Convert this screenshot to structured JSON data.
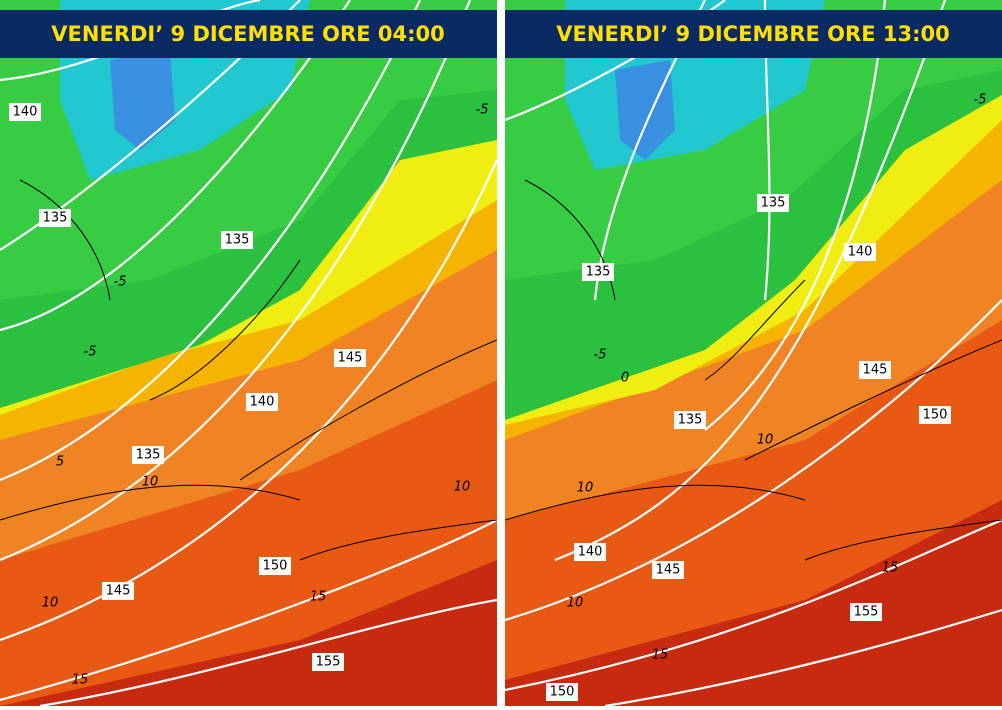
{
  "panels": [
    {
      "title": "VENERDI’ 9 DICEMBRE ORE 04:00",
      "isohypse_labels": [
        "140",
        "135",
        "135",
        "145",
        "140",
        "135",
        "150",
        "145",
        "155"
      ],
      "isotherm_labels": [
        "-5",
        "-5",
        "-5",
        "5",
        "10",
        "10",
        "10",
        "15",
        "15"
      ]
    },
    {
      "title": "VENERDI’ 9 DICEMBRE ORE 13:00",
      "isohypse_labels": [
        "135",
        "135",
        "140",
        "145",
        "150",
        "135",
        "140",
        "145",
        "155",
        "150"
      ],
      "isotherm_labels": [
        "-5",
        "0",
        "10",
        "10",
        "10",
        "15",
        "15",
        "-5"
      ]
    }
  ]
}
